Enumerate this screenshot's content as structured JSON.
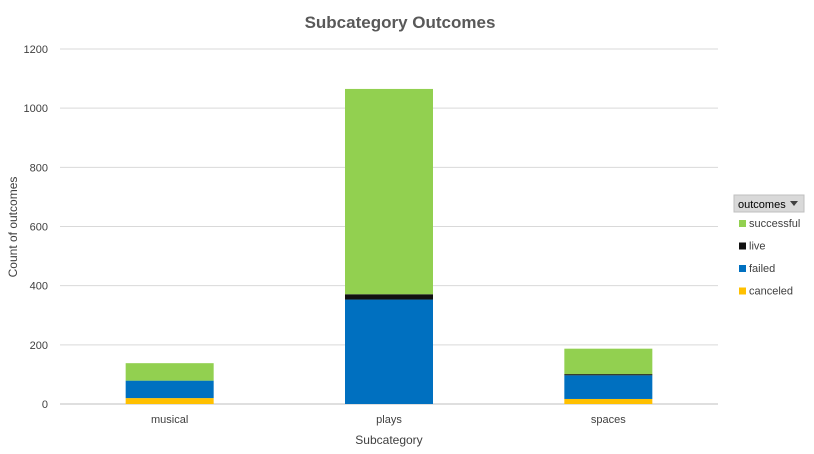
{
  "chart_data": {
    "type": "bar",
    "stacked": true,
    "title": "Subcategory Outcomes",
    "xlabel": "Subcategory",
    "ylabel": "Count of outcomes",
    "ylim": [
      0,
      1200
    ],
    "yticks": [
      0,
      200,
      400,
      600,
      800,
      1000,
      1200
    ],
    "grid": true,
    "legend_position": "right",
    "legend_title": "outcomes",
    "categories": [
      "musical",
      "plays",
      "spaces"
    ],
    "series": [
      {
        "name": "canceled",
        "color": "#ffc000",
        "values": [
          20,
          0,
          17
        ]
      },
      {
        "name": "failed",
        "color": "#0070c0",
        "values": [
          59,
          353,
          80
        ]
      },
      {
        "name": "live",
        "color": "#111111",
        "values": [
          0,
          18,
          4
        ]
      },
      {
        "name": "successful",
        "color": "#92d050",
        "values": [
          59,
          694,
          86
        ]
      }
    ],
    "legend_order": [
      "successful",
      "live",
      "failed",
      "canceled"
    ]
  }
}
